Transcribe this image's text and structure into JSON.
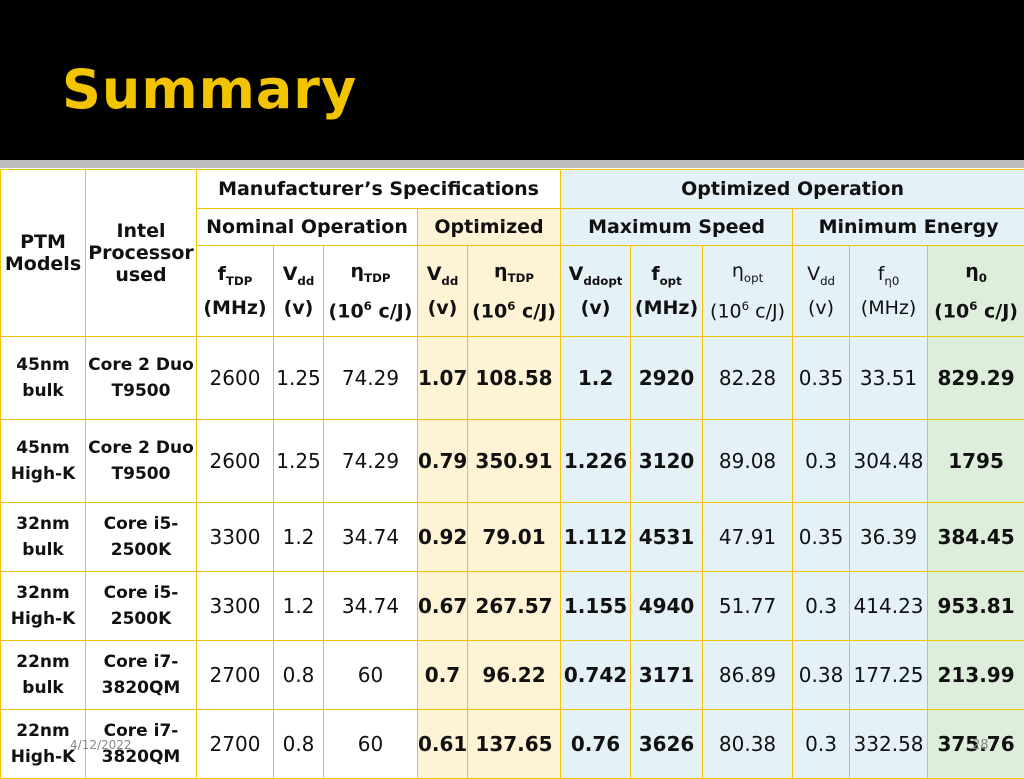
{
  "slide": {
    "title": "Summary",
    "date": "4/12/2022",
    "page": "28"
  },
  "table": {
    "headers": {
      "ptm": [
        "PTM",
        "Models"
      ],
      "intel": [
        "Intel",
        "Processor",
        "used"
      ],
      "manufacturer": "Manufacturer’s Specifications",
      "optimized_operation": "Optimized Operation",
      "nominal": "Nominal Operation",
      "optimized": "Optimized",
      "max_speed": "Maximum Speed",
      "min_energy": "Minimum Energy",
      "columns": [
        {
          "sym": "f",
          "sub": "TDP",
          "unit": "(MHz)"
        },
        {
          "sym": "V",
          "sub": "dd",
          "unit": "(v)"
        },
        {
          "sym": "η",
          "sub": "TDP",
          "unit_pre": "(10",
          "sup": "6",
          "unit_post": " c/J)"
        },
        {
          "sym": "V",
          "sub": "dd",
          "unit": "(v)"
        },
        {
          "sym": "η",
          "sub": "TDP",
          "unit_pre": "(10",
          "sup": "6",
          "unit_post": " c/J)"
        },
        {
          "sym": "V",
          "sub": "ddopt",
          "unit": "(v)"
        },
        {
          "sym": "f",
          "sub": "opt",
          "unit": "(MHz)"
        },
        {
          "sym": "η",
          "sub": "opt",
          "unit_pre": "(10",
          "sup": "6",
          "unit_post": " c/J)"
        },
        {
          "sym": "V",
          "sub": "dd",
          "unit": "(v)"
        },
        {
          "sym": "f",
          "sub": "η0",
          "unit": "(MHz)"
        },
        {
          "sym": "η",
          "sub": "0",
          "unit_pre": "(10",
          "sup": "6",
          "unit_post": " c/J)"
        }
      ]
    },
    "rows": [
      {
        "model": [
          "45nm",
          "bulk"
        ],
        "cpu": [
          "Core 2 Duo",
          "T9500"
        ],
        "v": [
          "2600",
          "1.25",
          "74.29",
          "1.07",
          "108.58",
          "1.2",
          "2920",
          "82.28",
          "0.35",
          "33.51",
          "829.29"
        ]
      },
      {
        "model": [
          "45nm",
          "High-K"
        ],
        "cpu": [
          "Core 2 Duo",
          "T9500"
        ],
        "v": [
          "2600",
          "1.25",
          "74.29",
          "0.79",
          "350.91",
          "1.226",
          "3120",
          "89.08",
          "0.3",
          "304.48",
          "1795"
        ]
      },
      {
        "model": [
          "32nm",
          "bulk"
        ],
        "cpu": [
          "Core i5-",
          "2500K"
        ],
        "v": [
          "3300",
          "1.2",
          "34.74",
          "0.92",
          "79.01",
          "1.112",
          "4531",
          "47.91",
          "0.35",
          "36.39",
          "384.45"
        ]
      },
      {
        "model": [
          "32nm",
          "High-K"
        ],
        "cpu": [
          "Core i5-",
          "2500K"
        ],
        "v": [
          "3300",
          "1.2",
          "34.74",
          "0.67",
          "267.57",
          "1.155",
          "4940",
          "51.77",
          "0.3",
          "414.23",
          "953.81"
        ]
      },
      {
        "model": [
          "22nm",
          "bulk"
        ],
        "cpu": [
          "Core i7-",
          "3820QM"
        ],
        "v": [
          "2700",
          "0.8",
          "60",
          "0.7",
          "96.22",
          "0.742",
          "3171",
          "86.89",
          "0.38",
          "177.25",
          "213.99"
        ]
      },
      {
        "model": [
          "22nm",
          "High-K"
        ],
        "cpu": [
          "Core i7-",
          "3820QM"
        ],
        "v": [
          "2700",
          "0.8",
          "60",
          "0.61",
          "137.65",
          "0.76",
          "3626",
          "80.38",
          "0.3",
          "332.58",
          "375.76"
        ]
      }
    ]
  },
  "colors": {
    "title": "#f2c400",
    "border": "#f2c400",
    "optimized_bg": "#fff3d6",
    "max_speed_bg": "#e4f1f7",
    "min_energy_bg": "#ddeedb"
  }
}
